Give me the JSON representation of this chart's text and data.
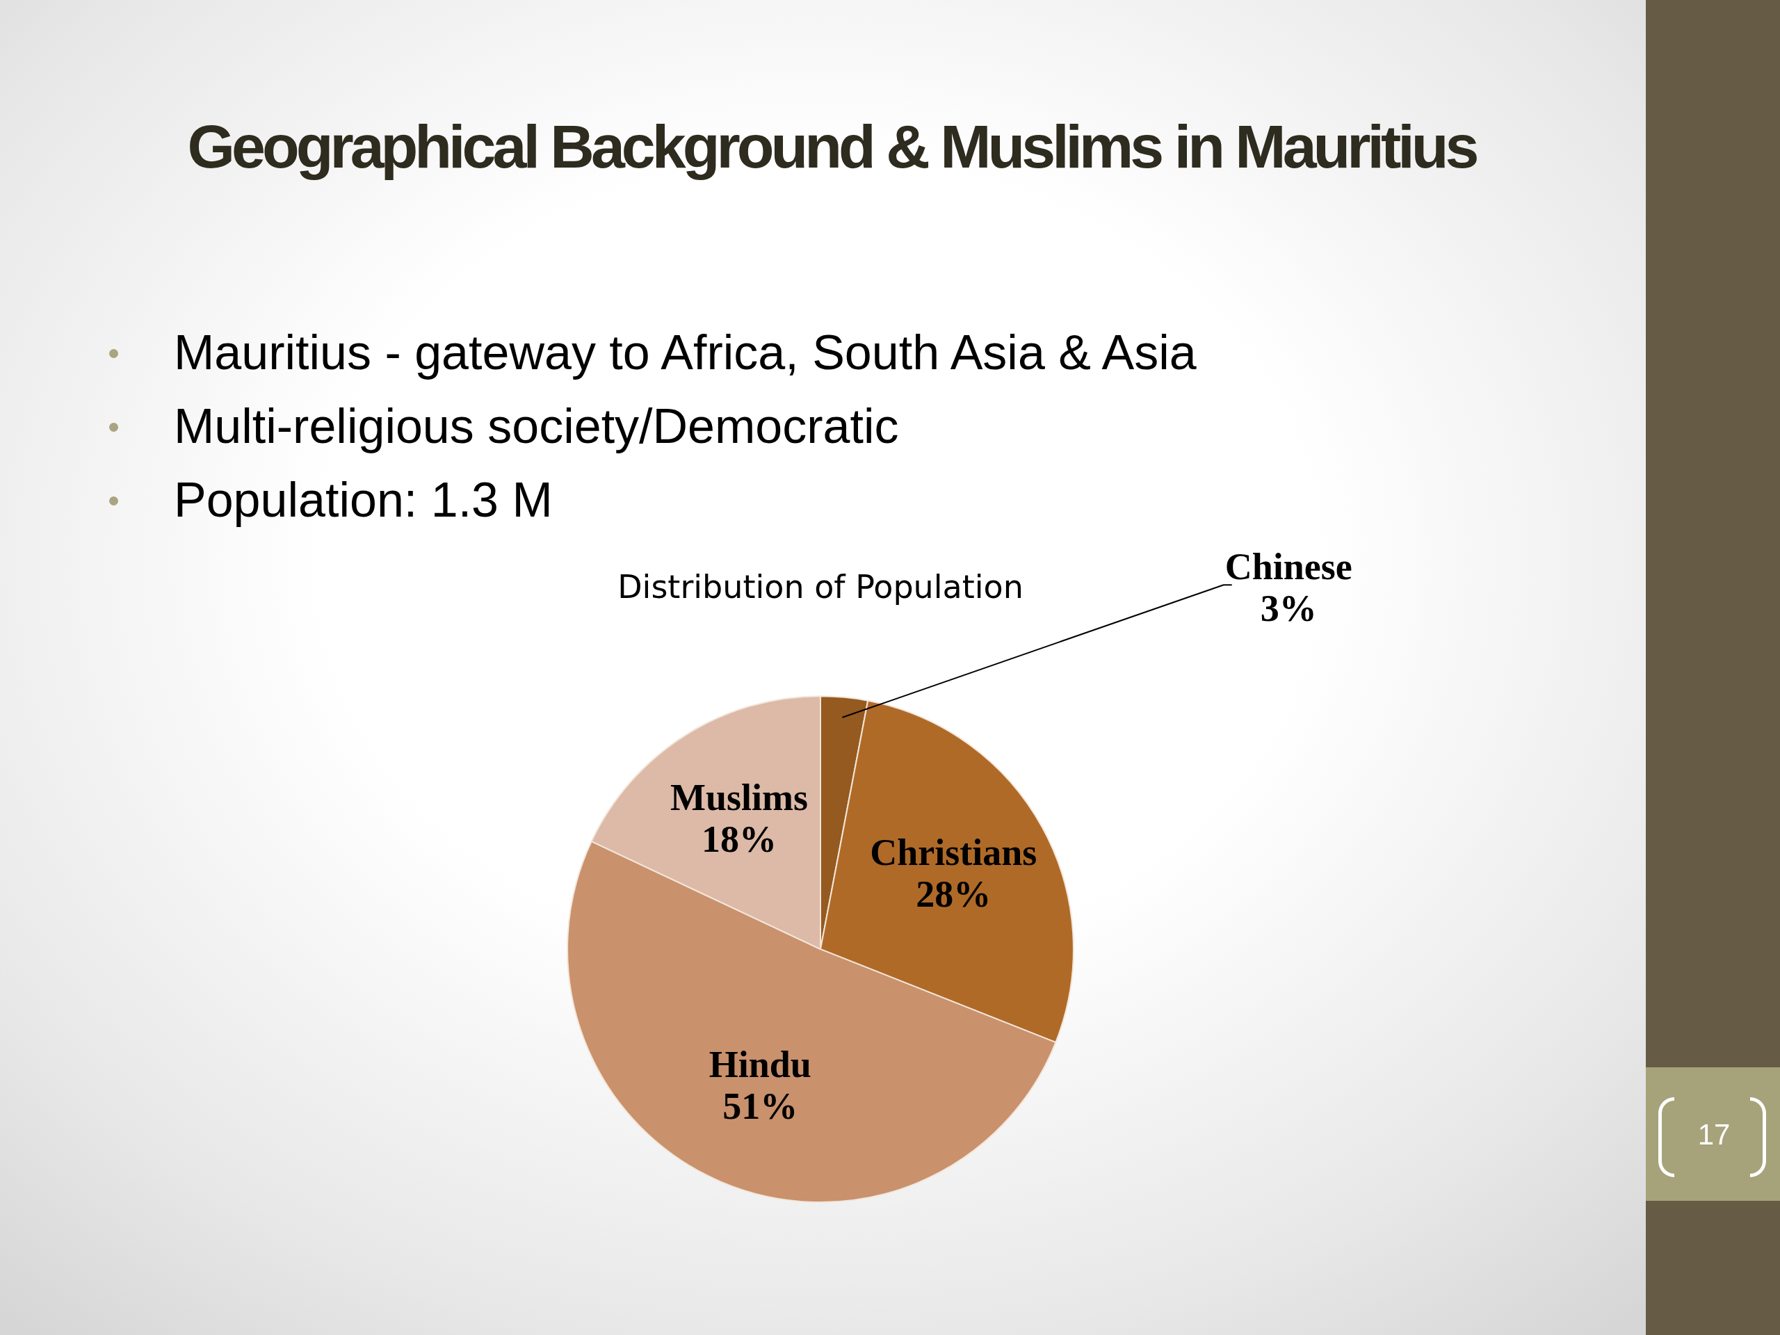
{
  "chart_data": {
    "type": "pie",
    "title": "Geographical Background & Muslims in Mauritius",
    "subtitle": "Distribution of Population",
    "categories": [
      "Chinese",
      "Christians",
      "Hindu",
      "Muslims"
    ],
    "values": [
      3,
      28,
      51,
      18
    ],
    "colors": [
      "#955a1f",
      "#b06a28",
      "#c9916c",
      "#dcbaa7"
    ],
    "value_labels": [
      "3%",
      "28%",
      "51%",
      "18%"
    ],
    "annotations": [
      "Mauritius - gateway to Africa, South Asia & Asia",
      "Multi-religious society/Democratic",
      "Population: 1.3 M",
      "17"
    ]
  }
}
